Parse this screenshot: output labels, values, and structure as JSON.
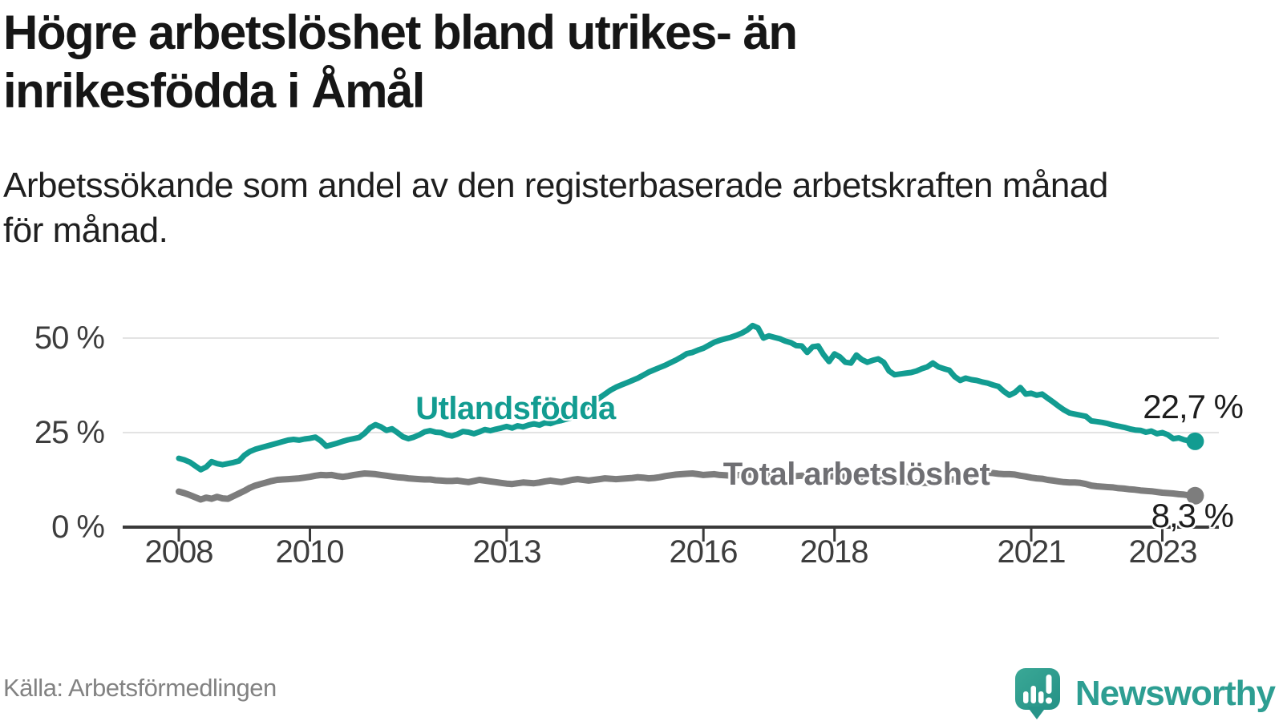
{
  "header": {
    "title_lines": [
      "Högre arbetslöshet bland utrikes- än",
      "inrikesfödda i Åmål"
    ],
    "subtitle_lines": [
      "Arbetssökande som andel av den registerbaserade arbetskraften månad",
      "för månad."
    ]
  },
  "footer": {
    "source": "Källa: Arbetsförmedlingen",
    "brand_name": "Newsworthy",
    "brand_color": "#2d9e92"
  },
  "chart_data": {
    "type": "line",
    "unit": "%",
    "frequency": "monthly",
    "x_start": "2008-01",
    "x_end": "2023-07",
    "xlim_years": [
      2007.2,
      2023.9
    ],
    "ylim": [
      0,
      55
    ],
    "grid": "horizontal-only",
    "y_axis": {
      "tick_labels": [
        "0 %",
        "25 %",
        "50 %"
      ],
      "tick_values": [
        0,
        25,
        50
      ],
      "gridline_values": [
        25,
        50
      ]
    },
    "x_axis": {
      "tick_labels": [
        "2008",
        "2010",
        "2013",
        "2016",
        "2018",
        "2021",
        "2023"
      ],
      "tick_years": [
        2008,
        2010,
        2013,
        2016,
        2018,
        2021,
        2023
      ]
    },
    "style": {
      "grid_color": "#e3e3e3",
      "axis_color": "#3a3a3a",
      "background": "#ffffff"
    },
    "series": [
      {
        "name": "Utlandsfödda",
        "color": "#129c91",
        "end_label": "22,7 %",
        "end_value": 22.7,
        "values": [
          18.2,
          17.8,
          17.2,
          16.2,
          15.2,
          15.9,
          17.3,
          16.8,
          16.5,
          16.8,
          17.1,
          17.5,
          19.0,
          20.0,
          20.6,
          21.0,
          21.4,
          21.8,
          22.2,
          22.6,
          23.0,
          23.2,
          23.0,
          23.3,
          23.5,
          23.8,
          22.8,
          21.4,
          21.8,
          22.2,
          22.7,
          23.1,
          23.4,
          23.7,
          24.8,
          26.3,
          27.1,
          26.5,
          25.6,
          26.0,
          25.0,
          23.9,
          23.4,
          23.8,
          24.4,
          25.2,
          25.5,
          25.1,
          25.0,
          24.4,
          24.1,
          24.6,
          25.3,
          25.1,
          24.7,
          25.2,
          25.8,
          25.5,
          25.9,
          26.2,
          26.6,
          26.2,
          26.8,
          26.5,
          27.0,
          27.3,
          27.0,
          27.6,
          27.4,
          27.9,
          28.2,
          28.6,
          29.0,
          29.8,
          30.8,
          32.0,
          33.2,
          34.2,
          35.2,
          36.2,
          37.0,
          37.6,
          38.2,
          38.8,
          39.4,
          40.2,
          41.0,
          41.6,
          42.2,
          42.8,
          43.5,
          44.2,
          45.0,
          45.9,
          46.2,
          46.8,
          47.3,
          48.1,
          48.9,
          49.4,
          49.8,
          50.2,
          50.7,
          51.3,
          52.1,
          53.3,
          52.7,
          50.0,
          50.6,
          50.2,
          49.8,
          49.2,
          48.8,
          48.0,
          47.9,
          46.2,
          47.7,
          47.9,
          45.6,
          43.8,
          45.8,
          45.0,
          43.6,
          43.4,
          45.5,
          44.3,
          43.6,
          44.1,
          44.5,
          43.6,
          41.3,
          40.3,
          40.5,
          40.7,
          40.9,
          41.3,
          41.9,
          42.4,
          43.4,
          42.4,
          41.9,
          41.5,
          39.8,
          38.8,
          39.4,
          39.0,
          38.8,
          38.4,
          38.1,
          37.6,
          37.2,
          35.9,
          34.9,
          35.6,
          36.9,
          35.2,
          35.4,
          34.9,
          35.2,
          34.1,
          33.1,
          32.0,
          31.0,
          30.2,
          29.9,
          29.6,
          29.3,
          28.1,
          27.9,
          27.7,
          27.4,
          27.0,
          26.7,
          26.4,
          26.0,
          25.7,
          25.6,
          25.1,
          25.4,
          24.7,
          25.0,
          24.4,
          23.4,
          23.6,
          23.1,
          22.8,
          22.7
        ]
      },
      {
        "name": "Total arbetslöshet",
        "color": "#7d7d7d",
        "label_color": "#6f6f73",
        "end_label": "8,3 %",
        "end_value": 8.3,
        "values": [
          9.4,
          9.0,
          8.5,
          7.9,
          7.3,
          7.8,
          7.5,
          8.0,
          7.6,
          7.5,
          8.2,
          8.9,
          9.6,
          10.4,
          11.0,
          11.4,
          11.8,
          12.2,
          12.5,
          12.6,
          12.7,
          12.8,
          12.9,
          13.1,
          13.3,
          13.6,
          13.8,
          13.7,
          13.8,
          13.5,
          13.3,
          13.5,
          13.8,
          14.0,
          14.2,
          14.1,
          14.0,
          13.8,
          13.6,
          13.4,
          13.2,
          13.1,
          12.9,
          12.8,
          12.7,
          12.6,
          12.6,
          12.4,
          12.3,
          12.2,
          12.2,
          12.3,
          12.1,
          11.9,
          12.2,
          12.5,
          12.3,
          12.1,
          11.9,
          11.7,
          11.5,
          11.4,
          11.6,
          11.8,
          11.7,
          11.6,
          11.8,
          12.1,
          12.3,
          12.1,
          11.9,
          12.2,
          12.5,
          12.7,
          12.5,
          12.3,
          12.5,
          12.7,
          12.9,
          12.8,
          12.7,
          12.8,
          12.9,
          13.0,
          13.2,
          13.1,
          12.9,
          13.0,
          13.2,
          13.5,
          13.7,
          13.9,
          14.0,
          14.1,
          14.2,
          14.0,
          13.8,
          13.9,
          14.0,
          13.8,
          13.7,
          13.6,
          13.7,
          13.8,
          13.9,
          13.8,
          13.7,
          13.7,
          13.8,
          13.9,
          13.8,
          13.7,
          13.6,
          13.5,
          13.6,
          13.5,
          13.4,
          13.3,
          13.4,
          13.5,
          13.4,
          13.3,
          13.4,
          13.3,
          13.1,
          12.9,
          12.8,
          12.7,
          12.5,
          12.4,
          12.3,
          12.2,
          12.1,
          12.0,
          11.9,
          11.8,
          11.7,
          11.7,
          11.8,
          12.0,
          12.2,
          12.4,
          12.7,
          13.0,
          13.3,
          13.6,
          13.9,
          14.2,
          14.4,
          14.3,
          14.1,
          14.0,
          14.0,
          13.9,
          13.6,
          13.4,
          13.1,
          12.9,
          12.8,
          12.5,
          12.3,
          12.1,
          11.9,
          11.8,
          11.8,
          11.7,
          11.4,
          11.0,
          10.8,
          10.7,
          10.6,
          10.5,
          10.3,
          10.2,
          10.0,
          9.9,
          9.7,
          9.6,
          9.5,
          9.3,
          9.1,
          9.0,
          8.9,
          8.7,
          8.6,
          8.4,
          8.3
        ]
      }
    ]
  }
}
